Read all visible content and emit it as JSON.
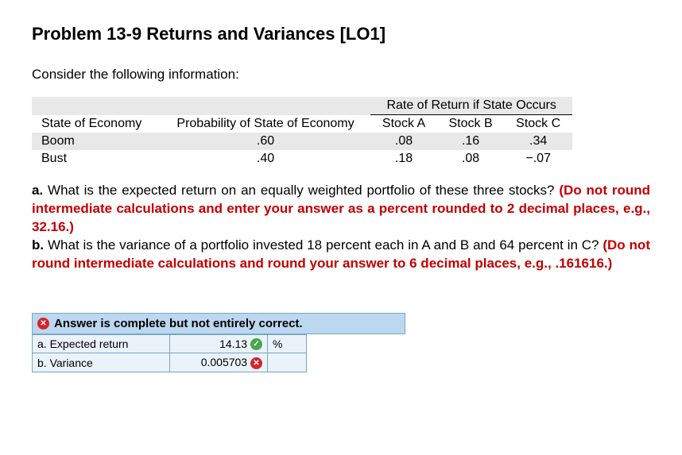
{
  "title": "Problem 13-9 Returns and Variances [LO1]",
  "intro": "Consider the following information:",
  "table": {
    "spanHeader": "Rate of Return if State Occurs",
    "cols": [
      "State of Economy",
      "Probability of State of Economy",
      "Stock A",
      "Stock B",
      "Stock C"
    ],
    "rows": [
      {
        "state": "Boom",
        "prob": ".60",
        "a": ".08",
        "b": ".16",
        "c": ".34"
      },
      {
        "state": "Bust",
        "prob": ".40",
        "a": ".18",
        "b": ".08",
        "c": "−.07"
      }
    ]
  },
  "qa": {
    "a_label": "a.",
    "a_text": "What is the expected return on an equally weighted portfolio of these three stocks? ",
    "a_note": "(Do not round intermediate calculations and enter your answer as a percent rounded to 2 decimal places, e.g., 32.16.)",
    "b_label": "b.",
    "b_text": "What is the variance of a portfolio invested 18 percent each in A and B and 64 percent in C? ",
    "b_note": "(Do not round intermediate calculations and round your answer to 6 decimal places, e.g., .161616.)"
  },
  "answer": {
    "headerText": "Answer is complete but not entirely correct.",
    "rows": [
      {
        "label": "a. Expected return",
        "value": "14.13",
        "status": "check",
        "unit": "%"
      },
      {
        "label": "b. Variance",
        "value": "0.005703",
        "status": "x",
        "unit": ""
      }
    ]
  }
}
